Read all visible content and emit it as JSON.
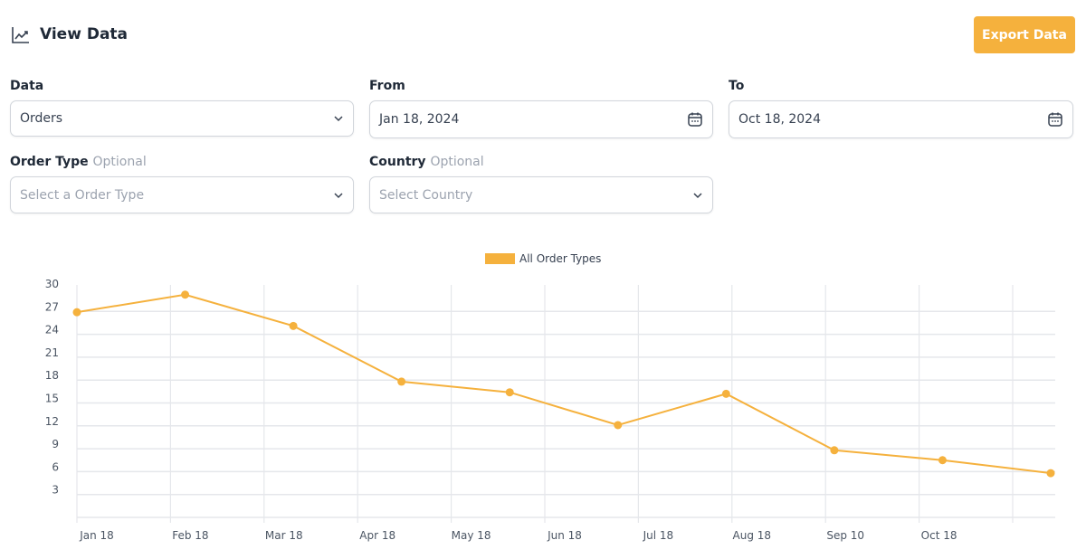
{
  "header": {
    "title": "View Data",
    "icon": "line-chart-icon",
    "export_label": "Export Data"
  },
  "form": {
    "data": {
      "label": "Data",
      "value": "Orders"
    },
    "from": {
      "label": "From",
      "value": "Jan 18, 2024"
    },
    "to": {
      "label": "To",
      "value": "Oct 18, 2024"
    },
    "order_type": {
      "label": "Order Type",
      "optional": "Optional",
      "placeholder": "Select a Order Type"
    },
    "country": {
      "label": "Country",
      "optional": "Optional",
      "placeholder": "Select Country"
    }
  },
  "colors": {
    "accent": "#f5b13d",
    "grid": "#e5e7eb"
  },
  "chart_data": {
    "type": "line",
    "legend": [
      "All Order Types"
    ],
    "legend_placement": "top-center",
    "x_tick_labels": [
      "Jan 18",
      "Feb 18",
      "Mar 18",
      "Apr 18",
      "May 18",
      "Jun 18",
      "Jul 18",
      "Aug 18",
      "Sep 10",
      "Oct 18"
    ],
    "y_ticks": [
      3,
      6,
      9,
      12,
      15,
      18,
      21,
      24,
      27,
      30
    ],
    "ylim": [
      0,
      30
    ],
    "grid": true,
    "series": [
      {
        "name": "All Order Types",
        "values": [
          26.9,
          29.2,
          25.1,
          17.8,
          16.4,
          12.1,
          16.2,
          8.8,
          7.5,
          5.8
        ]
      }
    ]
  }
}
